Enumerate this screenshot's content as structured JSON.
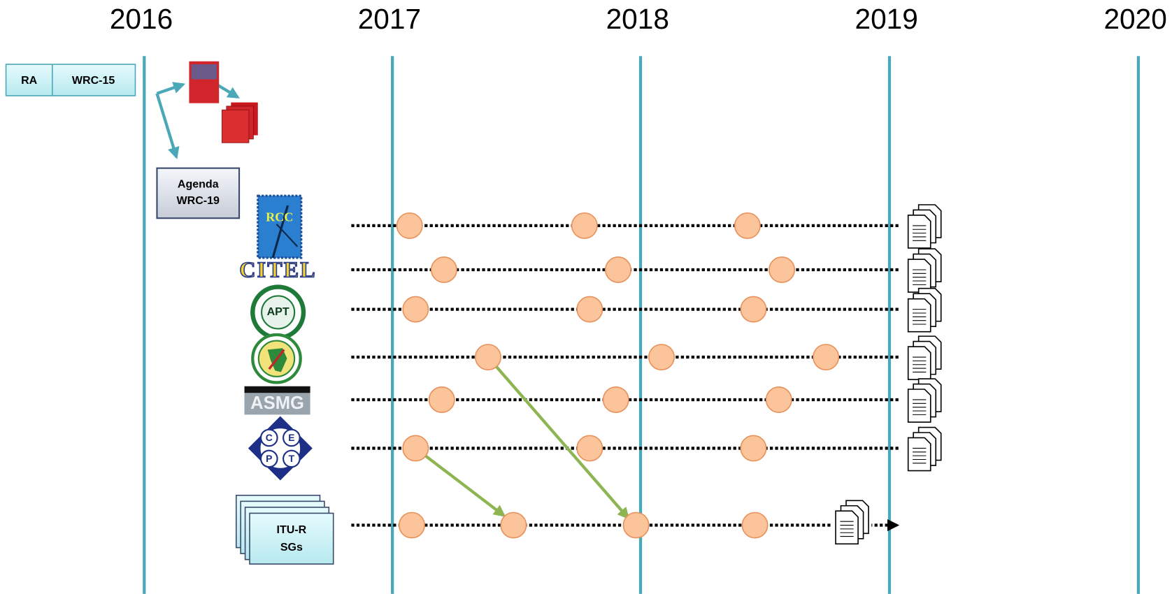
{
  "years": [
    "2016",
    "2017",
    "2018",
    "2019",
    "2020"
  ],
  "top_box": {
    "left": "RA",
    "right": "WRC-15"
  },
  "agenda_box": {
    "lines": [
      "Agenda",
      "WRC-19"
    ]
  },
  "logos": {
    "rcc": "RCC",
    "citel": "CITEL",
    "apt": "APT",
    "asmg": "ASMG",
    "cept": [
      "C",
      "E",
      "P",
      "T"
    ]
  },
  "itu_box": {
    "lines": [
      "ITU-R",
      "SGs"
    ]
  }
}
